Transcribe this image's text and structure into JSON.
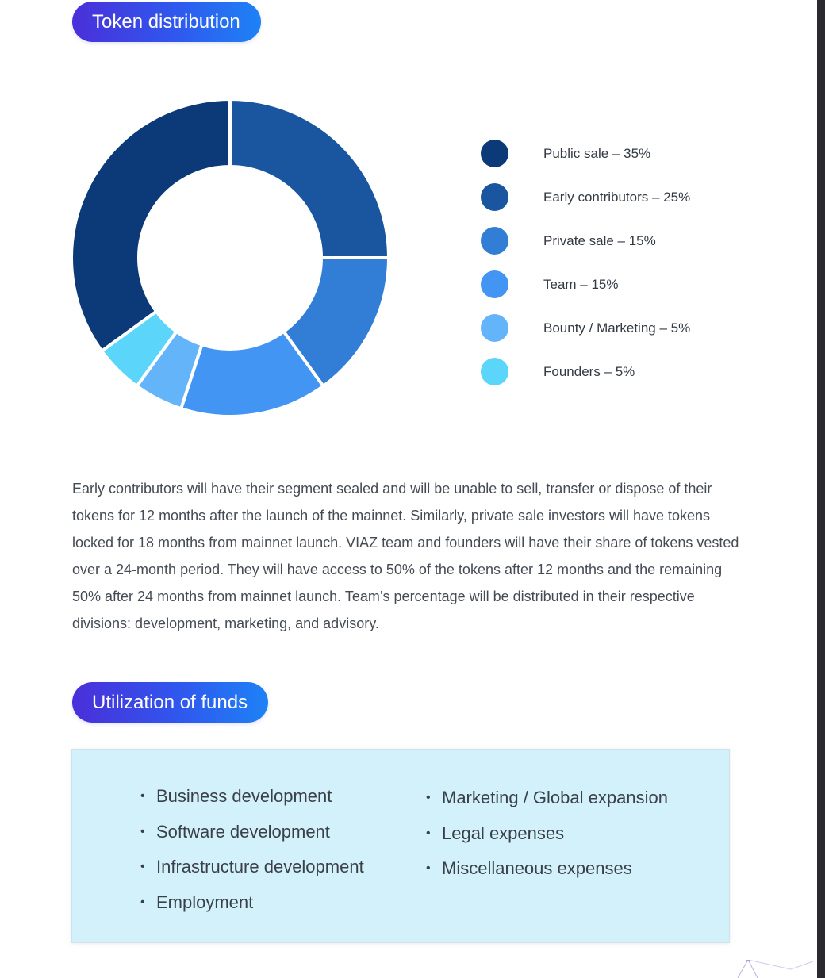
{
  "sections": {
    "token_title": "Token distribution",
    "funds_title": "Utilization of funds"
  },
  "chart_data": {
    "type": "donut",
    "legend_position": "right",
    "series": [
      {
        "name": "Public sale",
        "label": "Public sale – 35%",
        "value": 35,
        "color": "#0c3a79"
      },
      {
        "name": "Early contributors",
        "label": "Early contributors – 25%",
        "value": 25,
        "color": "#1a56a0"
      },
      {
        "name": "Private sale",
        "label": "Private sale – 15%",
        "value": 15,
        "color": "#327ed6"
      },
      {
        "name": "Team",
        "label": "Team – 15%",
        "value": 15,
        "color": "#4295f2"
      },
      {
        "name": "Bounty / Marketing",
        "label": "Bounty / Marketing – 5%",
        "value": 5,
        "color": "#64b4fa"
      },
      {
        "name": "Founders",
        "label": "Founders – 5%",
        "value": 5,
        "color": "#5cd5fb"
      }
    ]
  },
  "paragraph": "Early contributors will have their segment sealed and will be unable to sell, transfer or dispose of their tokens for 12 months after the launch of the mainnet. Similarly, private sale investors will have tokens locked for 18 months from mainnet launch. VIAZ team and founders will have their share of tokens vested over a 24-month period. They will have access to 50% of the tokens after 12 months and the remaining 50% after 24 months from mainnet launch. Team’s percentage will be distributed in their respective divisions: development, marketing, and advisory.",
  "funds": {
    "left": [
      "Business development",
      "Software development",
      "Infrastructure development",
      "Employment"
    ],
    "right": [
      "Marketing / Global expansion",
      "Legal expenses",
      "Miscellaneous expenses"
    ]
  }
}
